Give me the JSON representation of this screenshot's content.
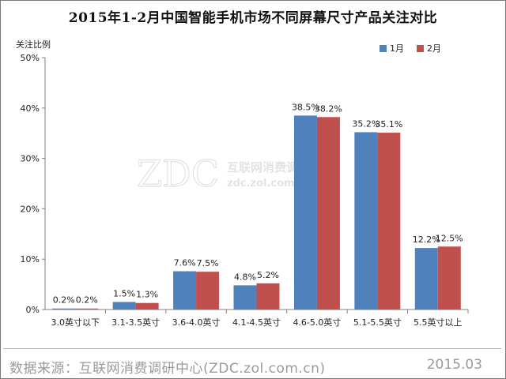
{
  "watermark": {
    "logo": "ZDC",
    "cn": "互联网消费调研中心",
    "url": "zdc.zol.com.cn"
  },
  "footer": {
    "source": "数据来源：互联网消费调研中心(ZDC.zol.com.cn)",
    "date": "2015.03"
  },
  "colors": {
    "series1": "#4f81bd",
    "series2": "#c0504d"
  },
  "chart_data": {
    "type": "bar",
    "title": "2015年1-2月中国智能手机市场不同屏幕尺寸产品关注对比",
    "ylabel": "关注比例",
    "xlabel": "",
    "categories": [
      "3.0英寸以下",
      "3.1-3.5英寸",
      "3.6-4.0英寸",
      "4.1-4.5英寸",
      "4.6-5.0英寸",
      "5.1-5.5英寸",
      "5.5英寸以上"
    ],
    "series": [
      {
        "name": "1月",
        "values": [
          0.2,
          1.5,
          7.6,
          4.8,
          38.5,
          35.2,
          12.2
        ]
      },
      {
        "name": "2月",
        "values": [
          0.2,
          1.3,
          7.5,
          5.2,
          38.2,
          35.1,
          12.5
        ]
      }
    ],
    "data_labels": [
      [
        "0.2%",
        "1.5%",
        "7.6%",
        "4.8%",
        "38.5%",
        "35.2%",
        "12.2%"
      ],
      [
        "0.2%",
        "1.3%",
        "7.5%",
        "5.2%",
        "38.2%",
        "35.1%",
        "12.5%"
      ]
    ],
    "ylim": [
      0,
      50
    ],
    "yticks": [
      0,
      10,
      20,
      30,
      40,
      50
    ],
    "ytick_labels": [
      "0%",
      "10%",
      "20%",
      "30%",
      "40%",
      "50%"
    ],
    "grid": false,
    "legend_position": "top-right"
  }
}
